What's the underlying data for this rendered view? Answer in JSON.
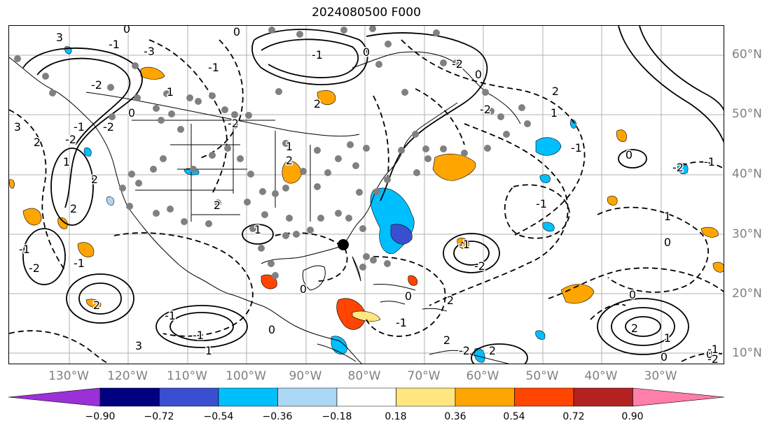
{
  "title": "2024080500 F000",
  "lat_labels": [
    "10°N",
    "20°N",
    "30°N",
    "40°N",
    "50°N",
    "60°N"
  ],
  "lon_labels": [
    "130°W",
    "120°W",
    "110°W",
    "100°W",
    "90°W",
    "80°W",
    "70°W",
    "60°W",
    "50°W",
    "40°W",
    "30°W"
  ],
  "colorbar": {
    "tick_labels": [
      "−0.90",
      "−0.72",
      "−0.54",
      "−0.36",
      "−0.18",
      "0.18",
      "0.36",
      "0.54",
      "0.72",
      "0.90"
    ],
    "colors": [
      "#9b30d9",
      "#000080",
      "#3a4fd0",
      "#00bfff",
      "#add8f5",
      "#ffffff",
      "#ffe680",
      "#ffa500",
      "#ff4500",
      "#b22222",
      "#ff7fa8"
    ]
  },
  "contour_labels": [
    "3",
    "-1",
    "0",
    "3",
    "2",
    "-2",
    "-1",
    "-2",
    "-3",
    "1",
    "-2",
    "0",
    "2",
    "1",
    "2",
    "-1",
    "-2",
    "-1",
    "2",
    "-1",
    "1",
    "3",
    "-1",
    "0",
    "0",
    "2",
    "1",
    "1",
    "2",
    "2",
    "-1",
    "0",
    "-1",
    "-2",
    "0",
    "-2",
    "0",
    "-2",
    "2",
    "1",
    "-1",
    "-1",
    "0",
    "-2",
    "-1",
    "0",
    "1",
    "-1",
    "-2",
    "-1",
    "2",
    "0",
    "2",
    "-2",
    "2",
    "0",
    "2",
    "1",
    "0",
    "0",
    "-1",
    "-2"
  ]
}
